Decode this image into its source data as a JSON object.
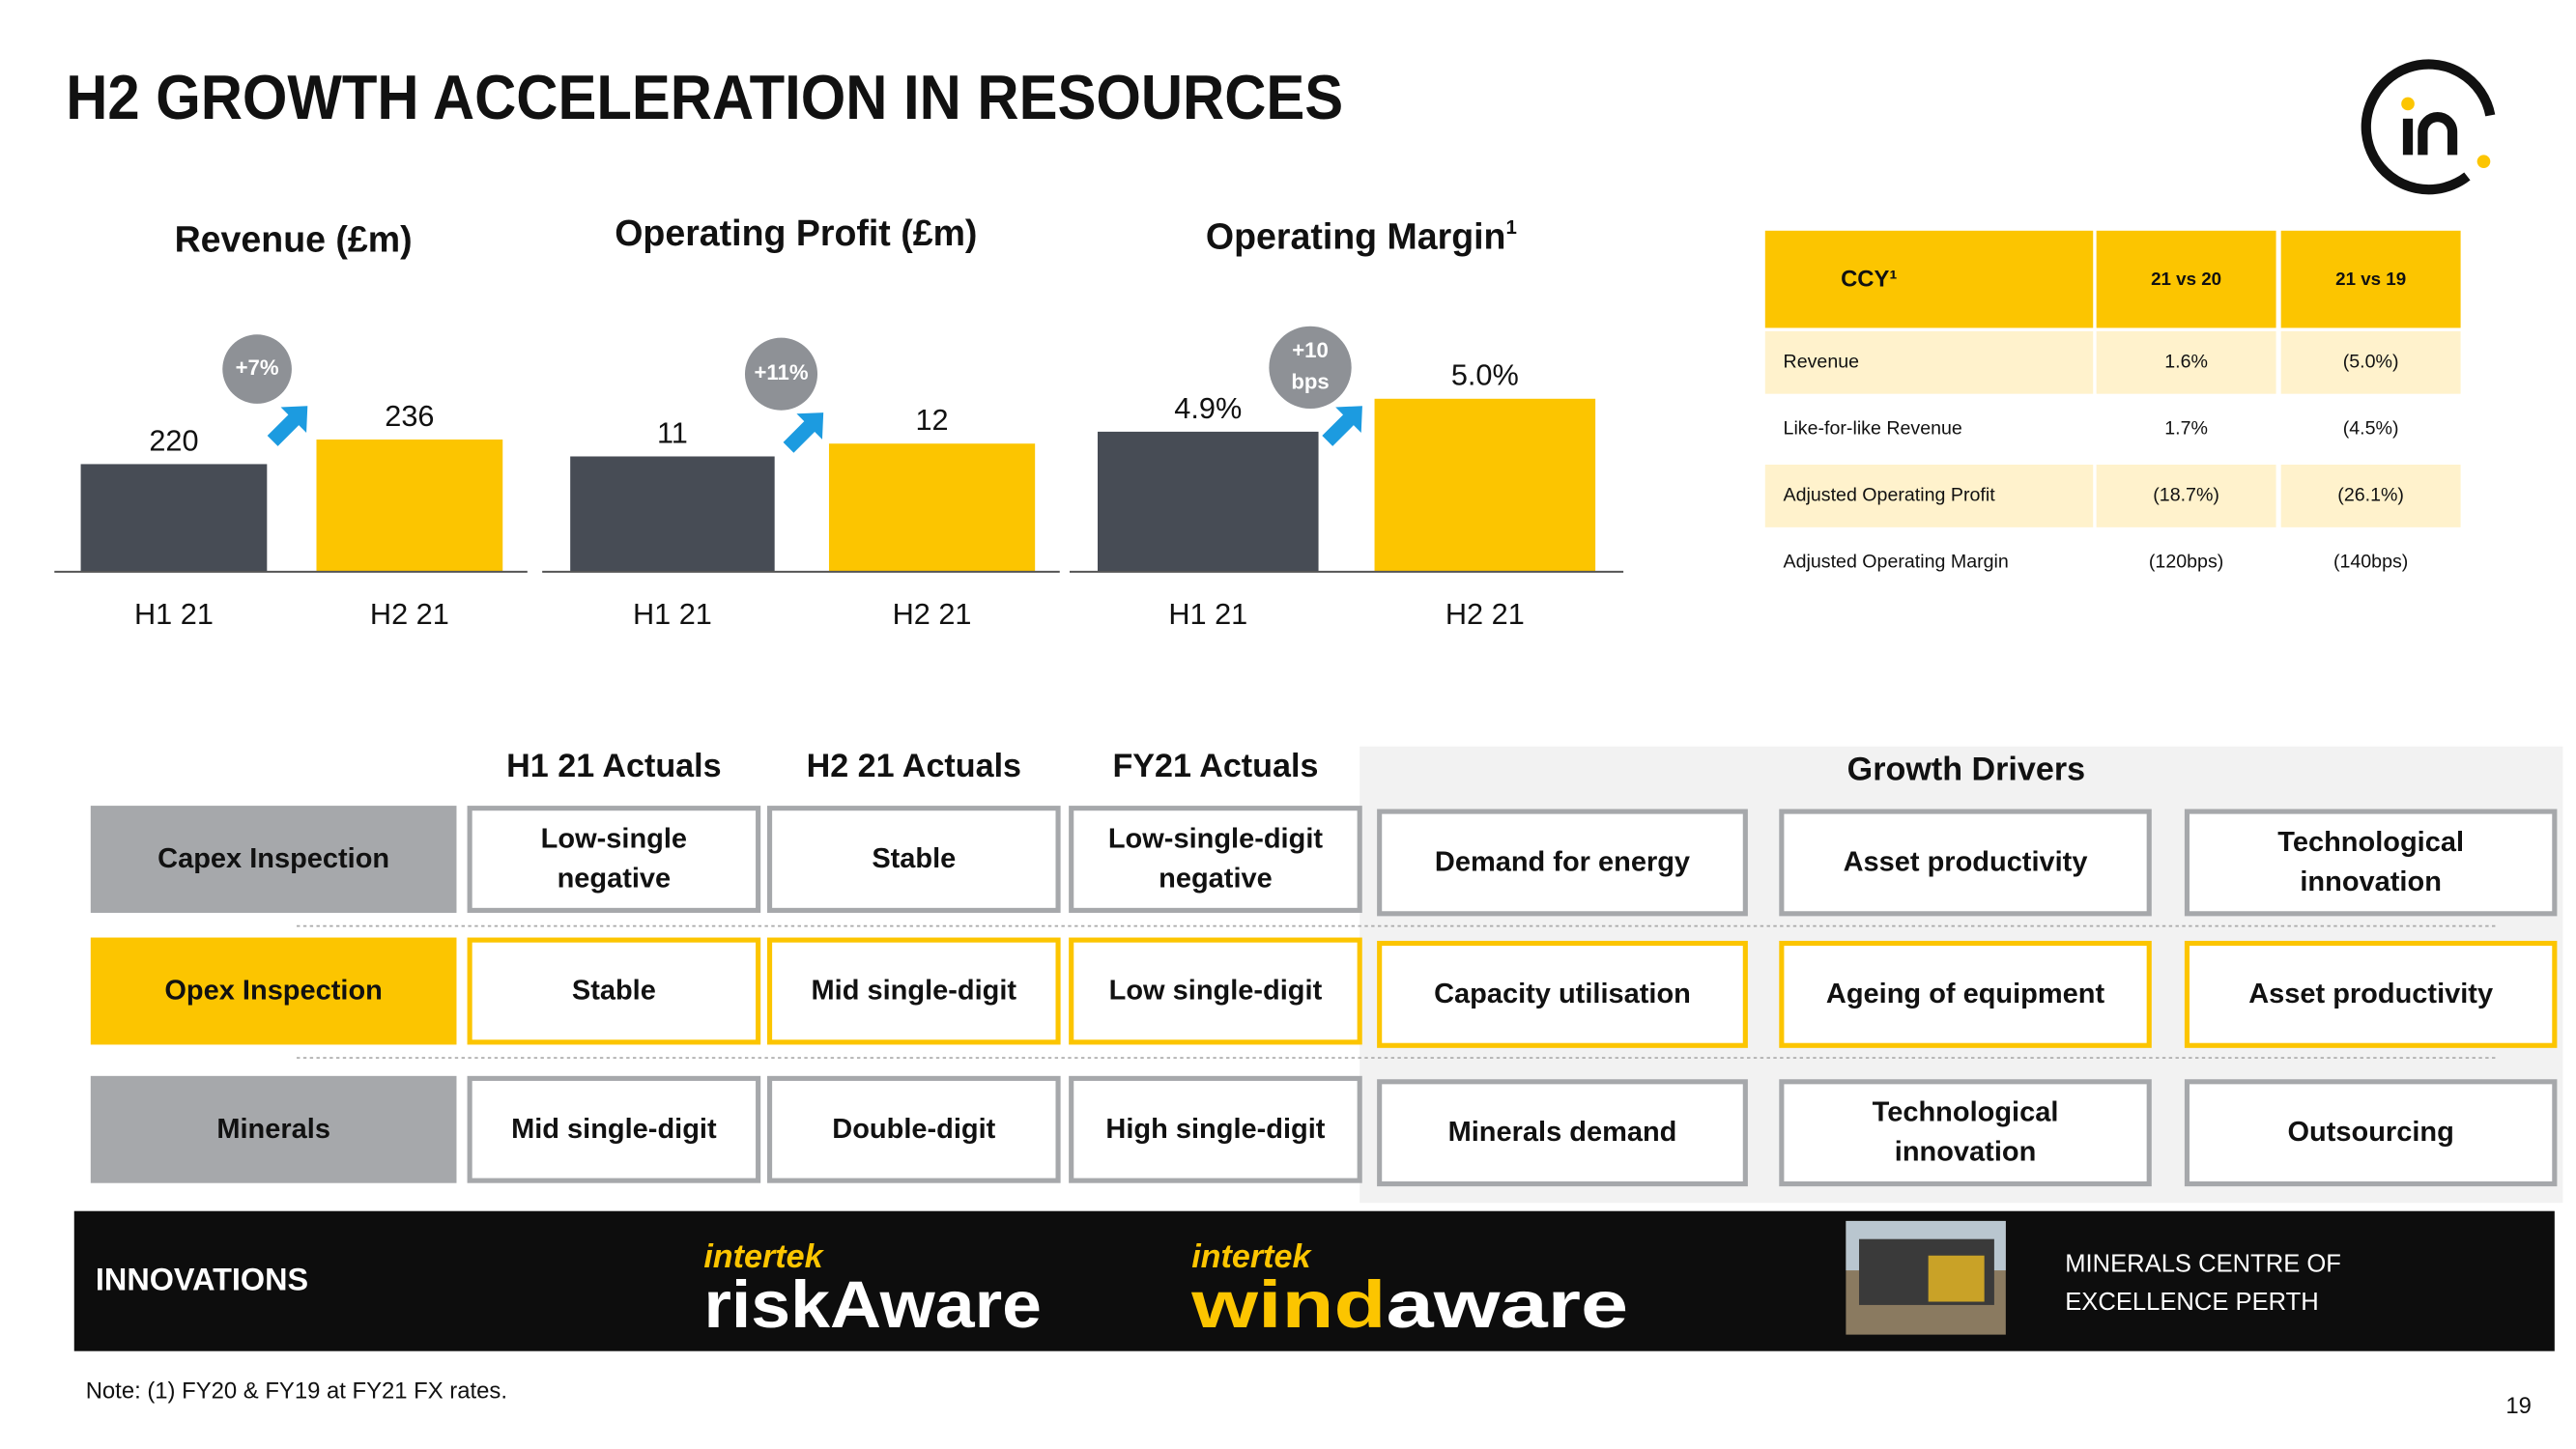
{
  "header": {
    "title": "H2 GROWTH ACCELERATION IN RESOURCES"
  },
  "chart_data": [
    {
      "type": "bar",
      "title": "Revenue  (£m)",
      "categories": [
        "H1 21",
        "H2 21"
      ],
      "values": [
        220,
        236
      ],
      "colors": [
        "#474c55",
        "#fcc500"
      ],
      "ylim": [
        150,
        300
      ],
      "badge": [
        "+7%"
      ]
    },
    {
      "type": "bar",
      "title": "Operating Profit (£m)",
      "categories": [
        "H1 21",
        "H2 21"
      ],
      "values": [
        11,
        12
      ],
      "colors": [
        "#474c55",
        "#fcc500"
      ],
      "ylim": [
        2,
        20
      ],
      "badge": [
        "+11%"
      ]
    },
    {
      "type": "bar",
      "title": "Operating Margin",
      "title_superscript": "1",
      "categories": [
        "H1 21",
        "H2 21"
      ],
      "values": [
        4.9,
        5.0
      ],
      "value_labels": [
        "4.9%",
        "5.0%"
      ],
      "colors": [
        "#474c55",
        "#fcc500"
      ],
      "ylim": [
        4.475,
        5.175
      ],
      "badge": [
        "+10",
        "bps"
      ]
    }
  ],
  "table": {
    "header": [
      "CCY¹",
      "21 vs 20",
      "21 vs 19"
    ],
    "rows": [
      [
        "Revenue",
        "1.6%",
        "(5.0%)"
      ],
      [
        "Like-for-like Revenue",
        "1.7%",
        "(4.5%)"
      ],
      [
        "Adjusted Operating Profit",
        "(18.7%)",
        "(26.1%)"
      ],
      [
        "Adjusted Operating Margin",
        "(120bps)",
        "(140bps)"
      ]
    ]
  },
  "grid": {
    "columns": [
      "H1 21 Actuals",
      "H2 21 Actuals",
      "FY21 Actuals"
    ],
    "drivers_title": "Growth Drivers",
    "rows": [
      {
        "label": "Capex Inspection",
        "cells": [
          [
            "Low-single",
            "negative"
          ],
          [
            "Stable"
          ],
          [
            "Low-single-digit",
            "negative"
          ]
        ],
        "drivers": [
          [
            "Demand for energy"
          ],
          [
            "Asset productivity"
          ],
          [
            "Technological",
            "innovation"
          ]
        ]
      },
      {
        "label": "Opex Inspection",
        "cells": [
          [
            "Stable"
          ],
          [
            "Mid single-digit"
          ],
          [
            "Low single-digit"
          ]
        ],
        "drivers": [
          [
            "Capacity utilisation"
          ],
          [
            "Ageing of equipment"
          ],
          [
            "Asset productivity"
          ]
        ]
      },
      {
        "label": "Minerals",
        "cells": [
          [
            "Mid single-digit"
          ],
          [
            "Double-digit"
          ],
          [
            "High single-digit"
          ]
        ],
        "drivers": [
          [
            "Minerals demand"
          ],
          [
            "Technological",
            "innovation"
          ],
          [
            "Outsourcing"
          ]
        ]
      }
    ]
  },
  "innovations": {
    "label": "INNOVATIONS",
    "logos": [
      {
        "brand": "intertek",
        "name": [
          "riskAware"
        ]
      },
      {
        "brand": "intertek",
        "name": [
          "wind",
          "aware"
        ]
      }
    ],
    "caption": [
      "MINERALS CENTRE OF",
      "EXCELLENCE PERTH"
    ]
  },
  "note": "Note: (1) FY20 & FY19 at FY21 FX rates.",
  "page_number": "19"
}
